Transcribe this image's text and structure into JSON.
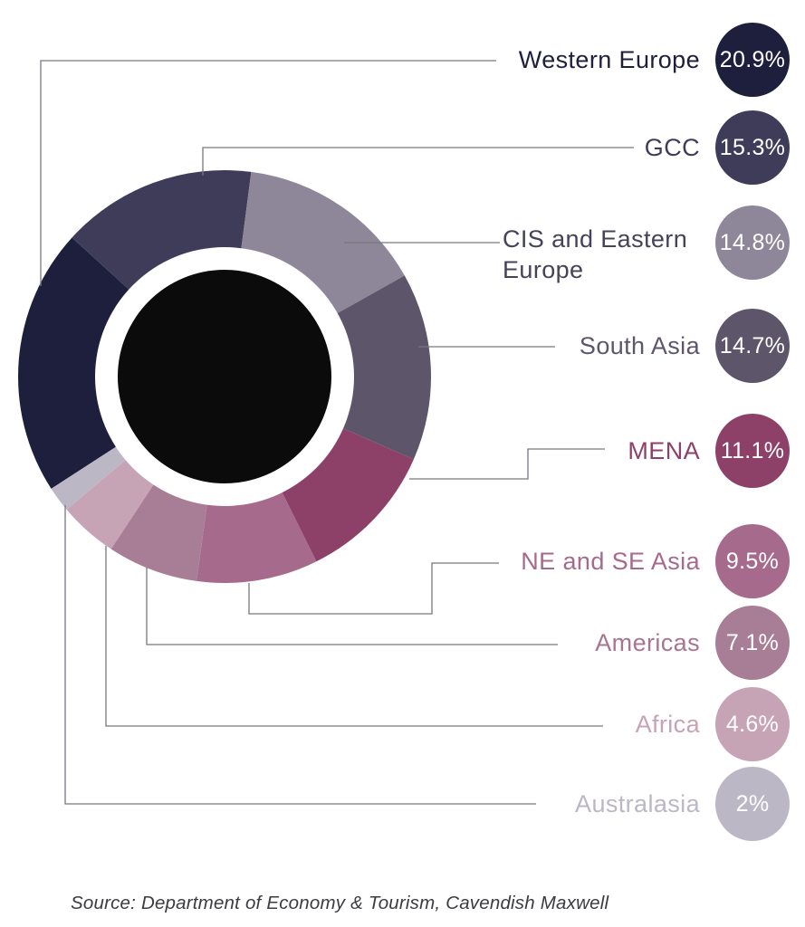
{
  "chart_data": {
    "type": "pie",
    "subtype": "donut",
    "title": "",
    "legend_position": "right",
    "start_angle_deg": 237.1,
    "direction": "clockwise",
    "center_fill_color": "#0b0b0b",
    "inner_ring_color": "#ffffff",
    "connector_line_color": "#77777f",
    "items": [
      {
        "label": "Western Europe",
        "value": 20.9,
        "value_label": "20.9%",
        "color": "#1e1f3d",
        "label_color": "#1e1f3d"
      },
      {
        "label": "GCC",
        "value": 15.3,
        "value_label": "15.3%",
        "color": "#3f3c59",
        "label_color": "#3f3c59"
      },
      {
        "label": "CIS and Eastern Europe",
        "value": 14.8,
        "value_label": "14.8%",
        "color": "#8d8799",
        "label_color": "#454358"
      },
      {
        "label": "South Asia",
        "value": 14.7,
        "value_label": "14.7%",
        "color": "#5d566b",
        "label_color": "#5d566b"
      },
      {
        "label": "MENA",
        "value": 11.1,
        "value_label": "11.1%",
        "color": "#8e4168",
        "label_color": "#8e4168"
      },
      {
        "label": "NE and SE Asia",
        "value": 9.5,
        "value_label": "9.5%",
        "color": "#a56a8c",
        "label_color": "#a56a8c"
      },
      {
        "label": "Americas",
        "value": 7.1,
        "value_label": "7.1%",
        "color": "#a87e97",
        "label_color": "#a8758f"
      },
      {
        "label": "Africa",
        "value": 4.6,
        "value_label": "4.6%",
        "color": "#c6a4b5",
        "label_color": "#c6a4b5"
      },
      {
        "label": "Australasia",
        "value": 2,
        "value_label": "2%",
        "color": "#bcb7c5",
        "label_color": "#bcb7c5"
      }
    ]
  },
  "source_note": "Source: Department of Economy & Tourism, Cavendish Maxwell"
}
